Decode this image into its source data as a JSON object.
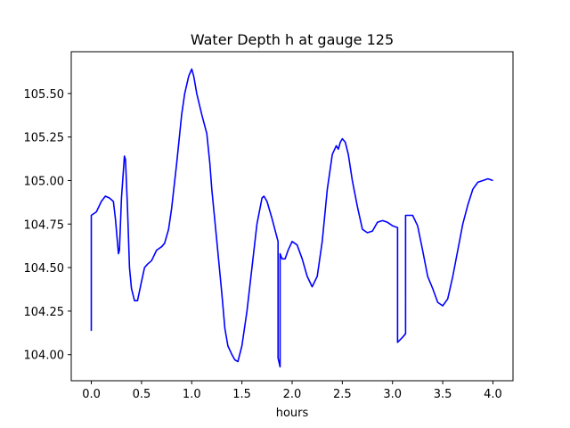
{
  "chart_data": {
    "type": "line",
    "title": "Water Depth h at gauge 125",
    "xlabel": "hours",
    "ylabel": "",
    "xlim": [
      -0.2,
      4.2
    ],
    "ylim": [
      103.85,
      105.74
    ],
    "xticks": [
      0.0,
      0.5,
      1.0,
      1.5,
      2.0,
      2.5,
      3.0,
      3.5,
      4.0
    ],
    "xtick_labels": [
      "0.0",
      "0.5",
      "1.0",
      "1.5",
      "2.0",
      "2.5",
      "3.0",
      "3.5",
      "4.0"
    ],
    "yticks": [
      104.0,
      104.25,
      104.5,
      104.75,
      105.0,
      105.25,
      105.5
    ],
    "ytick_labels": [
      "104.00",
      "104.25",
      "104.50",
      "104.75",
      "105.00",
      "105.25",
      "105.50"
    ],
    "grid": false,
    "series": [
      {
        "color": "#0000ff",
        "x": [
          0.0,
          0.0,
          0.0,
          0.05,
          0.1,
          0.14,
          0.18,
          0.22,
          0.24,
          0.27,
          0.28,
          0.3,
          0.33,
          0.34,
          0.36,
          0.38,
          0.4,
          0.43,
          0.46,
          0.5,
          0.53,
          0.56,
          0.6,
          0.65,
          0.7,
          0.73,
          0.77,
          0.8,
          0.85,
          0.9,
          0.93,
          0.97,
          1.0,
          1.02,
          1.05,
          1.1,
          1.15,
          1.18,
          1.2,
          1.25,
          1.3,
          1.33,
          1.36,
          1.4,
          1.43,
          1.46,
          1.5,
          1.55,
          1.6,
          1.65,
          1.7,
          1.72,
          1.75,
          1.8,
          1.86,
          1.86,
          1.88,
          1.88,
          1.9,
          1.93,
          1.96,
          2.0,
          2.05,
          2.1,
          2.15,
          2.2,
          2.25,
          2.3,
          2.35,
          2.4,
          2.44,
          2.46,
          2.48,
          2.5,
          2.53,
          2.56,
          2.6,
          2.65,
          2.7,
          2.75,
          2.8,
          2.85,
          2.9,
          2.95,
          3.0,
          3.05,
          3.05,
          3.1,
          3.13,
          3.13,
          3.15,
          3.2,
          3.25,
          3.3,
          3.35,
          3.4,
          3.45,
          3.5,
          3.55,
          3.6,
          3.65,
          3.7,
          3.75,
          3.8,
          3.85,
          3.9,
          3.95,
          4.0
        ],
        "values": [
          104.2,
          104.14,
          104.8,
          104.82,
          104.88,
          104.91,
          104.9,
          104.88,
          104.78,
          104.58,
          104.6,
          104.9,
          105.14,
          105.12,
          104.85,
          104.5,
          104.38,
          104.31,
          104.31,
          104.42,
          104.5,
          104.52,
          104.54,
          104.6,
          104.62,
          104.64,
          104.72,
          104.84,
          105.1,
          105.38,
          105.5,
          105.6,
          105.64,
          105.6,
          105.5,
          105.38,
          105.27,
          105.1,
          104.95,
          104.65,
          104.35,
          104.15,
          104.05,
          104.0,
          103.97,
          103.96,
          104.05,
          104.25,
          104.5,
          104.75,
          104.9,
          104.91,
          104.88,
          104.78,
          104.65,
          103.98,
          103.93,
          104.58,
          104.55,
          104.55,
          104.6,
          104.65,
          104.63,
          104.55,
          104.45,
          104.39,
          104.45,
          104.65,
          104.95,
          105.15,
          105.2,
          105.18,
          105.22,
          105.24,
          105.22,
          105.15,
          105.0,
          104.85,
          104.72,
          104.7,
          104.71,
          104.76,
          104.77,
          104.76,
          104.74,
          104.73,
          104.07,
          104.1,
          104.12,
          104.8,
          104.8,
          104.8,
          104.74,
          104.6,
          104.45,
          104.38,
          104.3,
          104.28,
          104.32,
          104.45,
          104.6,
          104.75,
          104.86,
          104.95,
          104.99,
          105.0,
          105.01,
          105.0
        ]
      }
    ]
  }
}
